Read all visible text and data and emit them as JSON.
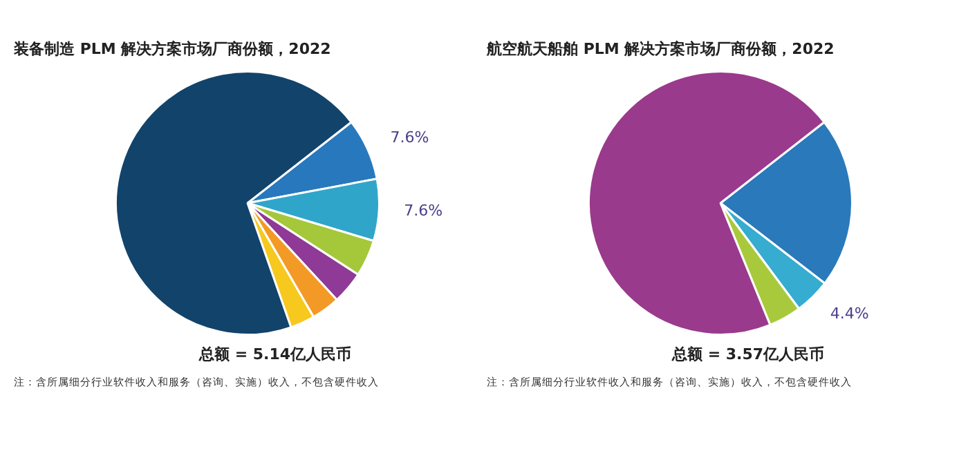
{
  "chart_data": [
    {
      "type": "pie",
      "title": "装备制造 PLM 解决方案市场厂商份额，2022",
      "categories": [
        null,
        null,
        null,
        null,
        null,
        null,
        null
      ],
      "values": [
        7.6,
        7.6,
        4.5,
        4,
        3.5,
        3,
        69.8
      ],
      "colors": [
        "#2878bd",
        "#2fa6c9",
        "#a5c73a",
        "#8e3a96",
        "#f39a26",
        "#f7c81d",
        "#12436b"
      ],
      "value_labels": [
        "7.6%",
        "7.6%",
        null,
        null,
        null,
        null,
        null
      ],
      "legend": false,
      "annotations": [
        "总额 = 5.14亿人民币",
        "注：含所属细分行业软件收入和服务（咨询、实施）收入，不包含硬件收入"
      ]
    },
    {
      "type": "pie",
      "title": "航空航天船舶 PLM 解决方案市场厂商份额，2022",
      "categories": [
        null,
        null,
        null,
        null
      ],
      "values": [
        21,
        4.4,
        4,
        70.6
      ],
      "colors": [
        "#2a79bb",
        "#35acd0",
        "#a9c93c",
        "#9a3a8c"
      ],
      "value_labels": [
        null,
        "4.4%",
        null,
        null
      ],
      "legend": false,
      "annotations": [
        "总额 = 3.57亿人民币",
        "注：含所属细分行业软件收入和服务（咨询、实施）收入，不包含硬件收入"
      ]
    }
  ]
}
